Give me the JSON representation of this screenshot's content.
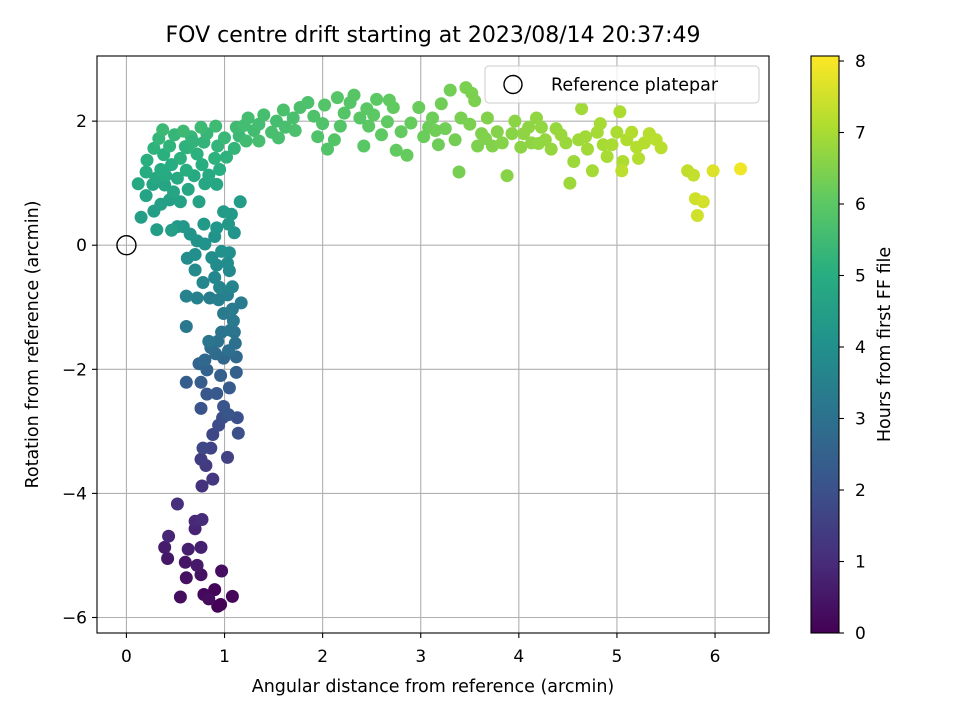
{
  "chart_data": {
    "type": "scatter",
    "title": "FOV centre drift starting at 2023/08/14 20:37:49",
    "xlabel": "Angular distance from reference (arcmin)",
    "ylabel": "Rotation from reference (arcmin)",
    "colorbar_label": "Hours from first FF file",
    "colormap": "viridis",
    "xlim": [
      -0.3,
      6.55
    ],
    "ylim": [
      -6.25,
      3.05
    ],
    "clim": [
      0,
      8.07
    ],
    "xticks": [
      0,
      1,
      2,
      3,
      4,
      5,
      6
    ],
    "yticks": [
      -6,
      -4,
      -2,
      0,
      2
    ],
    "cticks": [
      0,
      1,
      2,
      3,
      4,
      5,
      6,
      7,
      8
    ],
    "xtick_labels": [
      "0",
      "1",
      "2",
      "3",
      "4",
      "5",
      "6"
    ],
    "ytick_labels": [
      "−6",
      "−4",
      "−2",
      "0",
      "2"
    ],
    "ctick_labels": [
      "0",
      "1",
      "2",
      "3",
      "4",
      "5",
      "6",
      "7",
      "8"
    ],
    "grid": true,
    "legend": {
      "position": "top-right",
      "entries": [
        {
          "label": "Reference platepar",
          "marker": "open-circle",
          "color": "#000000"
        }
      ]
    },
    "reference_point": {
      "x": 0,
      "y": 0
    },
    "points": [
      [
        0.93,
        -5.82,
        0.02
      ],
      [
        0.96,
        -5.79,
        0.05
      ],
      [
        0.9,
        -5.55,
        0.1
      ],
      [
        1.08,
        -5.66,
        0.14
      ],
      [
        0.79,
        -5.63,
        0.18
      ],
      [
        0.84,
        -5.7,
        0.22
      ],
      [
        0.55,
        -5.67,
        0.27
      ],
      [
        0.97,
        -5.25,
        0.3
      ],
      [
        0.61,
        -5.36,
        0.36
      ],
      [
        0.76,
        -5.31,
        0.4
      ],
      [
        0.6,
        -5.11,
        0.45
      ],
      [
        0.42,
        -5.05,
        0.5
      ],
      [
        0.72,
        -5.16,
        0.55
      ],
      [
        0.39,
        -4.87,
        0.6
      ],
      [
        0.63,
        -4.9,
        0.66
      ],
      [
        0.76,
        -4.87,
        0.72
      ],
      [
        0.7,
        -4.57,
        0.8
      ],
      [
        0.43,
        -4.69,
        0.86
      ],
      [
        0.7,
        -4.45,
        0.92
      ],
      [
        0.77,
        -4.42,
        0.98
      ],
      [
        0.52,
        -4.17,
        1.05
      ],
      [
        0.77,
        -3.88,
        1.15
      ],
      [
        0.88,
        -3.77,
        1.25
      ],
      [
        0.81,
        -3.55,
        1.35
      ],
      [
        0.76,
        -3.45,
        1.45
      ],
      [
        1.03,
        -3.42,
        1.55
      ],
      [
        0.86,
        -3.27,
        1.62
      ],
      [
        0.88,
        -3.05,
        1.7
      ],
      [
        0.78,
        -3.27,
        1.75
      ],
      [
        0.94,
        -2.9,
        1.82
      ],
      [
        0.98,
        -2.78,
        1.9
      ],
      [
        1.14,
        -3.03,
        1.95
      ],
      [
        1.13,
        -2.78,
        2.0
      ],
      [
        0.76,
        -2.63,
        2.05
      ],
      [
        0.99,
        -2.6,
        2.1
      ],
      [
        1.04,
        -2.73,
        2.15
      ],
      [
        0.82,
        -2.4,
        2.2
      ],
      [
        0.92,
        -2.39,
        2.25
      ],
      [
        1.05,
        -2.3,
        2.3
      ],
      [
        0.76,
        -2.21,
        2.35
      ],
      [
        0.61,
        -2.21,
        2.4
      ],
      [
        0.96,
        -2.1,
        2.45
      ],
      [
        1.12,
        -2.05,
        2.5
      ],
      [
        0.82,
        -2.01,
        2.55
      ],
      [
        0.74,
        -1.91,
        2.6
      ],
      [
        0.99,
        -1.82,
        2.65
      ],
      [
        1.12,
        -1.8,
        2.7
      ],
      [
        0.8,
        -1.85,
        2.75
      ],
      [
        0.91,
        -1.75,
        2.8
      ],
      [
        0.86,
        -1.65,
        2.85
      ],
      [
        1.04,
        -1.7,
        2.9
      ],
      [
        1.11,
        -1.58,
        2.95
      ],
      [
        0.93,
        -1.55,
        3.0
      ],
      [
        1.1,
        -1.4,
        3.05
      ],
      [
        0.97,
        -1.4,
        3.1
      ],
      [
        1.06,
        -1.37,
        3.12
      ],
      [
        0.84,
        -1.55,
        3.15
      ],
      [
        0.61,
        -1.31,
        3.2
      ],
      [
        1.09,
        -1.22,
        3.25
      ],
      [
        0.99,
        -1.1,
        3.28
      ],
      [
        1.08,
        -1.03,
        3.32
      ],
      [
        1.17,
        -0.93,
        3.36
      ],
      [
        0.85,
        -0.85,
        3.4
      ],
      [
        0.94,
        -0.88,
        3.44
      ],
      [
        1.03,
        -0.8,
        3.48
      ],
      [
        0.72,
        -0.85,
        3.52
      ],
      [
        0.61,
        -0.82,
        3.56
      ],
      [
        0.95,
        -0.68,
        3.6
      ],
      [
        1.08,
        -0.67,
        3.64
      ],
      [
        0.78,
        -0.6,
        3.68
      ],
      [
        0.9,
        -0.52,
        3.72
      ],
      [
        1.05,
        -0.41,
        3.76
      ],
      [
        0.7,
        -0.4,
        3.8
      ],
      [
        0.92,
        -0.32,
        3.84
      ],
      [
        1.03,
        -0.29,
        3.87
      ],
      [
        0.62,
        -0.21,
        3.9
      ],
      [
        0.87,
        -0.2,
        3.93
      ],
      [
        0.7,
        -0.15,
        3.96
      ],
      [
        1.05,
        -0.12,
        4.0
      ],
      [
        0.97,
        -0.1,
        4.03
      ],
      [
        0.8,
        0.02,
        4.06
      ],
      [
        0.72,
        0.07,
        4.09
      ],
      [
        0.9,
        0.14,
        4.12
      ],
      [
        1.1,
        0.2,
        4.15
      ],
      [
        0.65,
        0.18,
        4.18
      ],
      [
        0.92,
        0.28,
        4.21
      ],
      [
        0.58,
        0.3,
        4.24
      ],
      [
        1.04,
        0.34,
        4.27
      ],
      [
        0.52,
        0.3,
        4.3
      ],
      [
        0.79,
        0.34,
        4.33
      ],
      [
        1.07,
        0.5,
        4.36
      ],
      [
        0.99,
        0.54,
        4.39
      ],
      [
        1.16,
        0.7,
        4.42
      ],
      [
        0.31,
        0.25,
        4.45
      ],
      [
        0.46,
        0.24,
        4.48
      ],
      [
        0.15,
        0.45,
        4.5
      ],
      [
        0.28,
        0.55,
        4.52
      ],
      [
        0.35,
        0.66,
        4.55
      ],
      [
        0.44,
        0.73,
        4.57
      ],
      [
        0.55,
        0.7,
        4.6
      ],
      [
        0.74,
        0.7,
        4.63
      ],
      [
        0.2,
        0.8,
        4.65
      ],
      [
        0.27,
        0.98,
        4.68
      ],
      [
        0.39,
        0.97,
        4.7
      ],
      [
        0.48,
        0.86,
        4.72
      ],
      [
        0.63,
        0.9,
        4.75
      ],
      [
        0.8,
        0.99,
        4.77
      ],
      [
        0.92,
        0.98,
        4.8
      ],
      [
        0.12,
        0.99,
        4.82
      ],
      [
        0.3,
        1.08,
        4.84
      ],
      [
        0.4,
        1.12,
        4.86
      ],
      [
        0.52,
        1.08,
        4.88
      ],
      [
        0.69,
        1.12,
        4.9
      ],
      [
        0.84,
        1.13,
        4.92
      ],
      [
        0.2,
        1.18,
        4.94
      ],
      [
        0.35,
        1.22,
        4.96
      ],
      [
        0.46,
        1.3,
        4.98
      ],
      [
        0.61,
        1.21,
        5.0
      ],
      [
        0.77,
        1.3,
        5.02
      ],
      [
        0.95,
        1.22,
        5.04
      ],
      [
        0.21,
        1.37,
        5.06
      ],
      [
        0.38,
        1.46,
        5.08
      ],
      [
        0.55,
        1.4,
        5.1
      ],
      [
        0.72,
        1.47,
        5.12
      ],
      [
        0.9,
        1.4,
        5.14
      ],
      [
        1.02,
        1.42,
        5.16
      ],
      [
        0.28,
        1.56,
        5.18
      ],
      [
        0.44,
        1.6,
        5.2
      ],
      [
        0.62,
        1.57,
        5.22
      ],
      [
        0.79,
        1.66,
        5.24
      ],
      [
        0.93,
        1.6,
        5.26
      ],
      [
        1.1,
        1.56,
        5.28
      ],
      [
        0.33,
        1.72,
        5.3
      ],
      [
        0.49,
        1.78,
        5.32
      ],
      [
        0.66,
        1.75,
        5.34
      ],
      [
        0.82,
        1.8,
        5.36
      ],
      [
        1.0,
        1.73,
        5.38
      ],
      [
        1.15,
        1.76,
        5.4
      ],
      [
        0.37,
        1.86,
        5.42
      ],
      [
        0.58,
        1.84,
        5.44
      ],
      [
        0.76,
        1.9,
        5.46
      ],
      [
        0.91,
        1.92,
        5.48
      ],
      [
        1.12,
        1.9,
        5.5
      ],
      [
        1.22,
        1.68,
        5.52
      ],
      [
        1.3,
        1.85,
        5.54
      ],
      [
        1.35,
        1.95,
        5.56
      ],
      [
        1.24,
        2.05,
        5.58
      ],
      [
        1.4,
        2.1,
        5.6
      ],
      [
        1.53,
        2.0,
        5.62
      ],
      [
        1.48,
        1.82,
        5.64
      ],
      [
        1.62,
        1.9,
        5.66
      ],
      [
        1.7,
        2.05,
        5.68
      ],
      [
        1.6,
        2.18,
        5.7
      ],
      [
        1.77,
        2.22,
        5.72
      ],
      [
        1.85,
        2.3,
        5.74
      ],
      [
        1.91,
        2.08,
        5.76
      ],
      [
        2.0,
        1.96,
        5.78
      ],
      [
        1.95,
        1.75,
        5.8
      ],
      [
        2.05,
        1.55,
        5.82
      ],
      [
        2.12,
        1.7,
        5.84
      ],
      [
        2.18,
        1.92,
        5.86
      ],
      [
        2.22,
        2.13,
        5.88
      ],
      [
        2.28,
        2.3,
        5.9
      ],
      [
        2.32,
        2.42,
        5.92
      ],
      [
        2.38,
        2.05,
        5.94
      ],
      [
        2.42,
        1.6,
        5.96
      ],
      [
        2.47,
        1.92,
        5.98
      ],
      [
        2.52,
        2.1,
        6.0
      ],
      [
        2.55,
        2.35,
        6.02
      ],
      [
        2.6,
        1.78,
        6.04
      ],
      [
        2.66,
        1.99,
        6.06
      ],
      [
        2.72,
        2.22,
        6.08
      ],
      [
        2.75,
        1.53,
        6.1
      ],
      [
        2.8,
        1.83,
        6.12
      ],
      [
        2.86,
        1.45,
        6.14
      ],
      [
        2.9,
        1.97,
        6.16
      ],
      [
        2.98,
        2.22,
        6.18
      ],
      [
        3.03,
        1.75,
        6.2
      ],
      [
        3.08,
        1.9,
        6.22
      ],
      [
        3.12,
        2.05,
        6.24
      ],
      [
        3.18,
        1.62,
        6.26
      ],
      [
        3.21,
        2.28,
        6.28
      ],
      [
        3.25,
        1.88,
        6.3
      ],
      [
        3.3,
        2.5,
        6.32
      ],
      [
        3.35,
        1.7,
        6.34
      ],
      [
        3.39,
        1.18,
        6.36
      ],
      [
        3.41,
        2.05,
        6.38
      ],
      [
        3.46,
        2.54,
        6.4
      ],
      [
        3.5,
        1.95,
        6.42
      ],
      [
        3.55,
        2.33,
        6.44
      ],
      [
        3.58,
        1.6,
        6.46
      ],
      [
        3.62,
        1.8,
        6.48
      ],
      [
        3.68,
        2.05,
        6.5
      ],
      [
        3.73,
        1.6,
        6.52
      ],
      [
        3.78,
        1.83,
        6.54
      ],
      [
        3.83,
        1.65,
        6.56
      ],
      [
        3.88,
        1.12,
        6.58
      ],
      [
        3.93,
        1.8,
        6.6
      ],
      [
        3.96,
        2.0,
        6.62
      ],
      [
        4.02,
        1.58,
        6.64
      ],
      [
        4.05,
        1.8,
        6.66
      ],
      [
        4.13,
        1.65,
        6.68
      ],
      [
        4.18,
        2.05,
        6.7
      ],
      [
        4.23,
        1.9,
        6.72
      ],
      [
        4.27,
        1.7,
        6.74
      ],
      [
        4.33,
        1.55,
        6.76
      ],
      [
        4.38,
        1.88,
        6.78
      ],
      [
        4.43,
        1.78,
        6.8
      ],
      [
        4.48,
        1.65,
        6.82
      ],
      [
        4.52,
        1.0,
        6.84
      ],
      [
        4.56,
        1.35,
        6.86
      ],
      [
        4.61,
        1.7,
        6.88
      ],
      [
        4.64,
        2.2,
        6.9
      ],
      [
        4.7,
        1.55,
        6.92
      ],
      [
        4.75,
        1.2,
        6.94
      ],
      [
        4.8,
        1.82,
        6.96
      ],
      [
        4.86,
        1.62,
        6.98
      ],
      [
        4.9,
        1.43,
        7.0
      ],
      [
        4.95,
        1.62,
        7.02
      ],
      [
        5.0,
        1.82,
        7.04
      ],
      [
        5.03,
        2.15,
        7.06
      ],
      [
        5.06,
        1.35,
        7.08
      ],
      [
        5.1,
        1.7,
        7.1
      ],
      [
        5.15,
        1.82,
        7.12
      ],
      [
        5.22,
        1.4,
        7.14
      ],
      [
        5.28,
        1.65,
        7.16
      ],
      [
        5.33,
        1.8,
        7.18
      ],
      [
        5.4,
        1.7,
        7.2
      ],
      [
        5.45,
        1.57,
        7.22
      ],
      [
        5.05,
        1.2,
        7.25
      ],
      [
        5.72,
        1.2,
        7.3
      ],
      [
        5.78,
        1.13,
        7.35
      ],
      [
        5.8,
        0.75,
        7.45
      ],
      [
        5.82,
        0.48,
        7.5
      ],
      [
        5.88,
        0.7,
        7.55
      ],
      [
        5.98,
        1.2,
        7.65
      ],
      [
        6.26,
        1.23,
        7.9
      ],
      [
        0.6,
        1.59,
        5.16
      ],
      [
        0.68,
        1.67,
        5.24
      ],
      [
        1.2,
        1.93,
        5.56
      ],
      [
        1.35,
        1.68,
        5.62
      ],
      [
        1.55,
        1.73,
        5.66
      ],
      [
        1.72,
        1.85,
        5.72
      ],
      [
        2.02,
        2.26,
        5.86
      ],
      [
        2.15,
        2.38,
        5.9
      ],
      [
        2.45,
        2.2,
        5.98
      ],
      [
        2.68,
        2.34,
        6.08
      ],
      [
        3.15,
        1.85,
        6.28
      ],
      [
        3.52,
        2.45,
        6.44
      ],
      [
        3.66,
        1.72,
        6.5
      ],
      [
        4.1,
        1.9,
        6.68
      ],
      [
        4.2,
        1.64,
        6.72
      ],
      [
        4.68,
        1.75,
        6.9
      ],
      [
        4.83,
        1.96,
        6.98
      ],
      [
        5.2,
        1.58,
        7.14
      ]
    ]
  }
}
